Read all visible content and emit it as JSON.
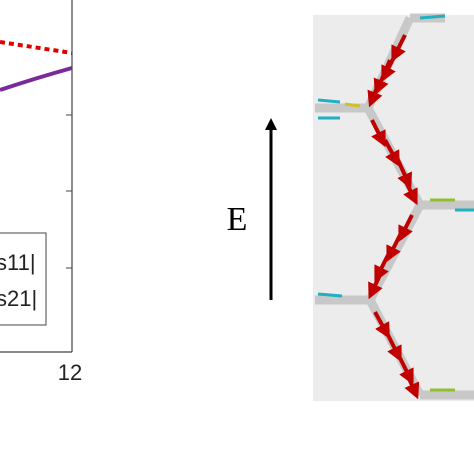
{
  "figure": {
    "left_panel": {
      "x_tick_label": "12",
      "legend": [
        "s11|",
        "s21|"
      ]
    },
    "right_panel": {
      "field_label": "E"
    }
  }
}
